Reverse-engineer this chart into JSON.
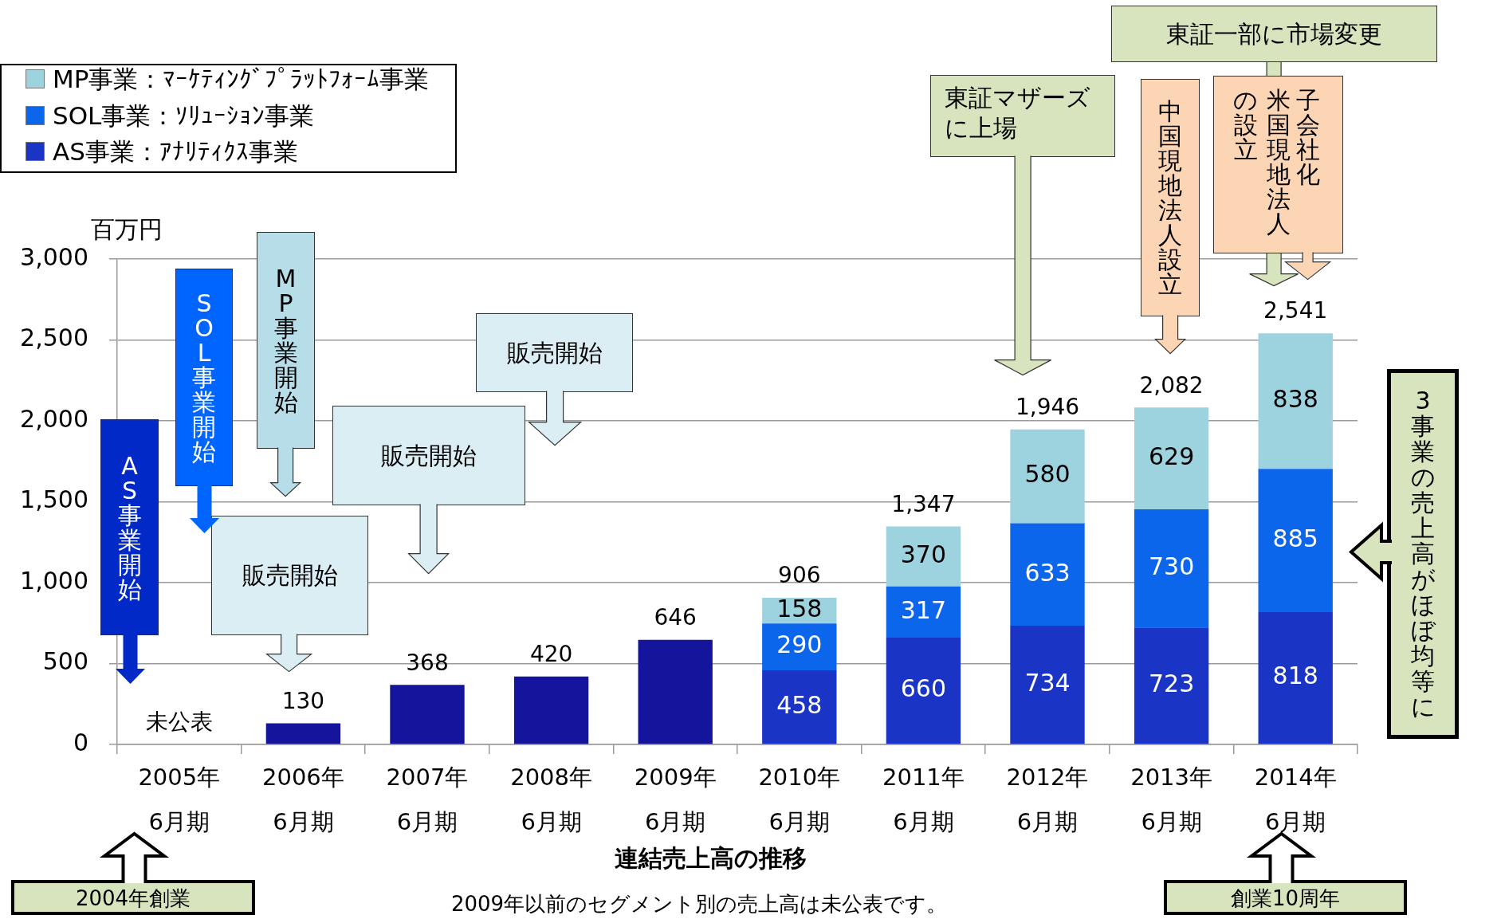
{
  "chart_data": {
    "type": "bar",
    "stacked": true,
    "categories": [
      "2005年 6月期",
      "2006年 6月期",
      "2007年 6月期",
      "2008年 6月期",
      "2009年 6月期",
      "2010年 6月期",
      "2011年 6月期",
      "2012年 6月期",
      "2013年 6月期",
      "2014年 6月期"
    ],
    "series": [
      {
        "color": "#14159c",
        "values": [
          null,
          130,
          368,
          420,
          646,
          null,
          null,
          null,
          null,
          null
        ]
      },
      {
        "name": "AS事業：ｱﾅﾘﾃｨｸｽ事業",
        "color": "#1a34c6",
        "values": [
          null,
          null,
          null,
          null,
          null,
          458,
          660,
          734,
          723,
          818
        ],
        "value_labels": [
          null,
          null,
          null,
          null,
          null,
          "458",
          "660",
          "734",
          "723",
          "818"
        ]
      },
      {
        "name": "SOL事業：ｿﾘｭｰｼｮﾝ事業",
        "color": "#0b66ec",
        "values": [
          null,
          null,
          null,
          null,
          null,
          290,
          317,
          633,
          730,
          885
        ],
        "value_labels": [
          null,
          null,
          null,
          null,
          null,
          "290",
          "317",
          "633",
          "730",
          "885"
        ]
      },
      {
        "name": "MP事業：ﾏｰｹﾃｨﾝｸﾞﾌﾟﾗｯﾄﾌｫｰﾑ事業",
        "color": "#9dd2df",
        "values": [
          null,
          null,
          null,
          null,
          null,
          158,
          370,
          580,
          629,
          838
        ],
        "value_labels": [
          null,
          null,
          null,
          null,
          null,
          "158",
          "370",
          "580",
          "629",
          "838"
        ]
      }
    ],
    "totals": [
      "未公表",
      "130",
      "368",
      "420",
      "646",
      "906",
      "1,347",
      "1,946",
      "2,082",
      "2,541"
    ],
    "ylim": [
      0,
      3000
    ],
    "yticks": [
      0,
      500,
      {
        "value": 1000,
        "label": "1,000"
      },
      {
        "value": 1500,
        "label": "1,500"
      },
      {
        "value": 2000,
        "label": "2,000"
      },
      {
        "value": 2500,
        "label": "2,500"
      },
      {
        "value": 3000,
        "label": "3,000"
      }
    ],
    "ylabel": "百万円",
    "xlabel": "連結売上高の推移",
    "grid": "y",
    "legend": "top left",
    "annotations": [
      "AS事業開始",
      "SOL事業開始",
      "MP事業開始",
      "販売開始",
      "販売開始",
      "販売開始",
      "東証マザーズに上場",
      "中国現地法人設立",
      "東証一部に市場変更",
      "子会社化",
      "米国現地法人の設立",
      "3事業の売上高がほぼ均等に",
      "2004年創業",
      "創業10周年",
      "2009年以前のセグメント別の売上高は未公表です。"
    ]
  }
}
